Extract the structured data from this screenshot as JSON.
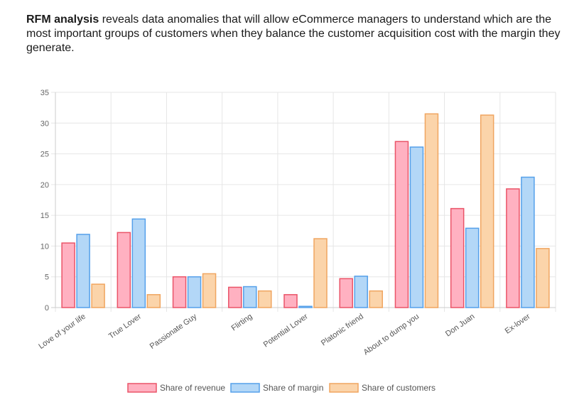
{
  "intro": {
    "bold": "RFM analysis",
    "text": " reveals data anomalies that will allow eCommerce managers to understand which are the most important groups of customers when they balance the customer acquisition cost with the margin they generate."
  },
  "chart_data": {
    "type": "bar",
    "title": "",
    "xlabel": "",
    "ylabel": "",
    "ylim": [
      0,
      35
    ],
    "yticks": [
      0,
      5,
      10,
      15,
      20,
      25,
      30,
      35
    ],
    "grid": true,
    "legend_position": "bottom",
    "categories": [
      "Love of your life",
      "True Lover",
      "Passionate Guy",
      "Flirting",
      "Potential Lover",
      "Platonic friend",
      "About to dump you",
      "Don Juan",
      "Ex-lover"
    ],
    "series": [
      {
        "name": "Share of revenue",
        "fill": "#ffb1c1",
        "stroke": "#ea5468",
        "values": [
          10.5,
          12.2,
          5.0,
          3.3,
          2.1,
          4.7,
          27.0,
          16.1,
          19.3
        ]
      },
      {
        "name": "Share of margin",
        "fill": "#b3d7f7",
        "stroke": "#55a0ea",
        "values": [
          11.9,
          14.4,
          5.0,
          3.4,
          0.2,
          5.1,
          26.1,
          12.9,
          21.2
        ]
      },
      {
        "name": "Share of customers",
        "fill": "#fbd4aa",
        "stroke": "#f0a560",
        "values": [
          3.8,
          2.1,
          5.5,
          2.7,
          11.2,
          2.7,
          31.5,
          31.3,
          9.6
        ]
      }
    ]
  }
}
